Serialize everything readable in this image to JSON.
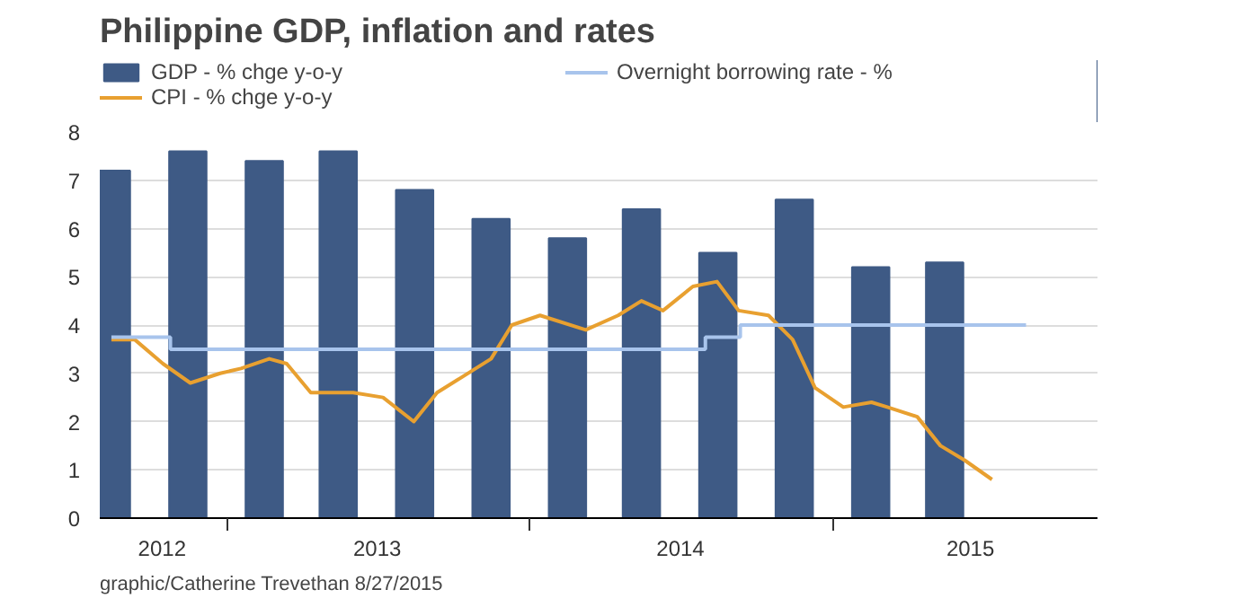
{
  "chart_data": {
    "type": "bar",
    "title": "Philippine GDP, inflation and rates",
    "annotations": [
      "graphic/Catherine Trevethan 8/27/2015"
    ],
    "xlim": [
      "2012-08-01",
      "2015-11-15"
    ],
    "xticks": [
      {
        "value": "2012-10-15",
        "label": "2012"
      },
      {
        "value": "2013-01-01",
        "label": null
      },
      {
        "value": "2013-07-01",
        "label": "2013"
      },
      {
        "value": "2014-01-01",
        "label": null
      },
      {
        "value": "2014-07-01",
        "label": "2014"
      },
      {
        "value": "2015-01-01",
        "label": null
      },
      {
        "value": "2015-06-15",
        "label": "2015"
      }
    ],
    "ylim": [
      0,
      8
    ],
    "yticks": [
      0,
      1,
      2,
      3,
      4,
      5,
      6,
      7,
      8
    ],
    "grid": "y",
    "legend": "top",
    "series": [
      {
        "name": "GDP - % chge y-o-y",
        "color": "#3e5a85",
        "x": [
          "2012-08-15",
          "2012-11-15",
          "2013-02-15",
          "2013-05-15",
          "2013-08-15",
          "2013-11-15",
          "2014-02-15",
          "2014-05-15",
          "2014-08-15",
          "2014-11-15",
          "2015-02-15",
          "2015-05-15"
        ],
        "values": [
          7.2,
          7.6,
          7.4,
          7.6,
          6.8,
          6.2,
          5.8,
          6.4,
          5.5,
          6.6,
          5.2,
          5.3
        ]
      },
      {
        "name": "CPI - % chge y-o-y",
        "type": "line",
        "color": "#e8a030",
        "x": [
          "2012-08-15",
          "2012-09-12",
          "2012-10-16",
          "2012-11-18",
          "2012-12-24",
          "2013-01-18",
          "2013-02-21",
          "2013-03-14",
          "2013-04-12",
          "2013-06-02",
          "2013-07-08",
          "2013-08-14",
          "2013-09-11",
          "2013-10-09",
          "2013-11-15",
          "2013-12-10",
          "2014-01-13",
          "2014-03-09",
          "2014-04-17",
          "2014-05-15",
          "2014-06-10",
          "2014-07-16",
          "2014-08-14",
          "2014-09-09",
          "2014-10-15",
          "2014-11-13",
          "2014-12-10",
          "2015-01-13",
          "2015-02-16",
          "2015-03-07",
          "2015-04-12",
          "2015-05-10",
          "2015-06-08",
          "2015-07-11"
        ],
        "values": [
          3.7,
          3.7,
          3.2,
          2.8,
          3.0,
          3.1,
          3.3,
          3.2,
          2.6,
          2.6,
          2.5,
          2.0,
          2.6,
          2.9,
          3.3,
          4.0,
          4.2,
          3.9,
          4.2,
          4.5,
          4.3,
          4.8,
          4.9,
          4.3,
          4.2,
          3.7,
          2.7,
          2.3,
          2.4,
          2.3,
          2.1,
          1.5,
          1.2,
          0.8
        ]
      },
      {
        "name": "Overnight borrowing rate - %",
        "type": "step",
        "color": "#a8c4ec",
        "x": [
          "2012-08-15",
          "2012-10-25",
          "2014-07-31",
          "2014-09-11",
          "2015-08-21"
        ],
        "values": [
          3.75,
          3.5,
          3.75,
          4.0,
          4.0
        ]
      }
    ]
  }
}
